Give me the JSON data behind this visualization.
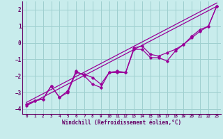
{
  "xlabel": "Windchill (Refroidissement éolien,°C)",
  "bg_color": "#c8ecec",
  "grid_color": "#9ecfcf",
  "line_color": "#990099",
  "text_color": "#660066",
  "xlim": [
    -0.5,
    23.5
  ],
  "ylim": [
    -4.3,
    2.5
  ],
  "yticks": [
    -4,
    -3,
    -2,
    -1,
    0,
    1,
    2
  ],
  "xticks": [
    0,
    1,
    2,
    3,
    4,
    5,
    6,
    7,
    8,
    9,
    10,
    11,
    12,
    13,
    14,
    15,
    16,
    17,
    18,
    19,
    20,
    21,
    22,
    23
  ],
  "straight_line": {
    "x": [
      0,
      23
    ],
    "y": [
      -3.8,
      2.2
    ]
  },
  "straight_line2": {
    "x": [
      0,
      23
    ],
    "y": [
      -3.6,
      2.4
    ]
  },
  "data_x": [
    0,
    1,
    2,
    3,
    4,
    5,
    6,
    7,
    8,
    9,
    10,
    11,
    12,
    13,
    14,
    15,
    16,
    17,
    18,
    19,
    20,
    21,
    22,
    23
  ],
  "data_y": [
    -3.8,
    -3.5,
    -3.4,
    -2.6,
    -3.3,
    -3.0,
    -1.8,
    -1.9,
    -2.1,
    -2.5,
    -1.8,
    -1.7,
    -1.8,
    -0.3,
    -0.2,
    -0.7,
    -0.8,
    -0.6,
    -0.4,
    -0.1,
    0.4,
    0.8,
    1.0,
    2.2
  ],
  "data_x2": [
    0,
    1,
    2,
    3,
    4,
    5,
    6,
    7,
    8,
    9,
    10,
    11,
    12,
    13,
    14,
    15,
    16,
    17,
    18,
    19,
    20,
    21,
    22,
    23
  ],
  "data_y2": [
    -3.7,
    -3.5,
    -3.4,
    -2.6,
    -3.3,
    -2.9,
    -1.7,
    -2.0,
    -2.5,
    -2.7,
    -1.8,
    -1.8,
    -1.8,
    -0.4,
    -0.4,
    -0.9,
    -0.9,
    -1.1,
    -0.5,
    -0.1,
    0.3,
    0.7,
    1.0,
    2.2
  ]
}
